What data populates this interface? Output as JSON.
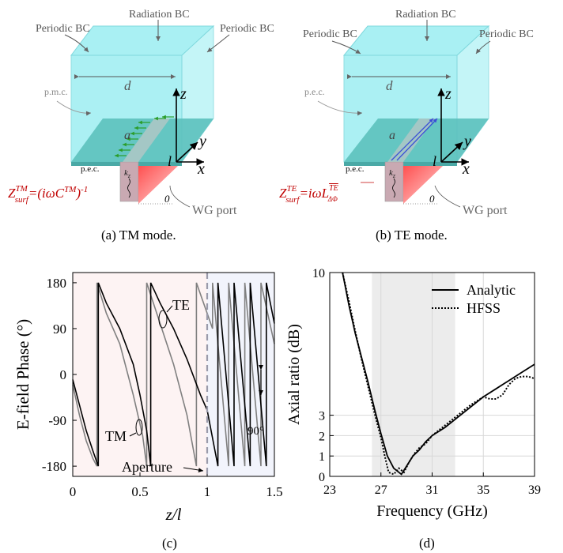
{
  "figure": {
    "a": {
      "caption": "(a) TM mode.",
      "labels": {
        "radiation_bc": "Radiation BC",
        "periodic_left": "Periodic BC",
        "periodic_right": "Periodic BC",
        "pmc": "p.m.c.",
        "pec": "p.e.c.",
        "d": "d",
        "a": "a",
        "z": "z",
        "y": "y",
        "x": "x",
        "l": "l",
        "kz": "kz",
        "zero": "0",
        "wg_port": "WG port",
        "formula": "Z_surf^TM = (iωC^TM)^-1"
      }
    },
    "b": {
      "caption": "(b) TE mode.",
      "labels": {
        "radiation_bc": "Radiation BC",
        "periodic_left": "Periodic BC",
        "periodic_right": "Periodic BC",
        "pec_top": "p.e.c.",
        "pec": "p.e.c.",
        "d": "d",
        "a": "a",
        "z": "z",
        "y": "y",
        "x": "x",
        "l": "l",
        "kz": "kz",
        "zero": "0",
        "wg_port": "WG port",
        "formula": "Z_surf^TE = iωL_ΔΦ^TE"
      }
    },
    "c": {
      "caption": "(c)"
    },
    "d": {
      "caption": "(d)"
    }
  },
  "chart_data": [
    {
      "id": "c",
      "type": "line",
      "xlabel": "z/l",
      "ylabel": "E-field Phase (°)",
      "xlim": [
        0,
        1.5
      ],
      "ylim": [
        -200,
        200
      ],
      "xticks": [
        0,
        0.5,
        1,
        1.5
      ],
      "xtick_labels": [
        "0",
        "0.5",
        "1",
        "1.5"
      ],
      "yticks": [
        180,
        90,
        0,
        -90,
        -180
      ],
      "ytick_labels": [
        "180",
        "90",
        "0",
        "-90",
        "-180"
      ],
      "aperture_x": 1,
      "regions": [
        {
          "x": [
            0,
            1
          ],
          "color": "#fdf3f3"
        },
        {
          "x": [
            1,
            1.5
          ],
          "color": "#f2f4fc"
        }
      ],
      "annotations": {
        "te": "TE",
        "tm": "TM",
        "aperture": "Aperture",
        "ninety": "90°"
      },
      "series": [
        {
          "name": "TE",
          "color": "#000000",
          "x": [
            0,
            0.05,
            0.1,
            0.15,
            0.19,
            0.19,
            0.25,
            0.35,
            0.45,
            0.5,
            0.55,
            0.58,
            0.58,
            0.65,
            0.75,
            0.85,
            0.95,
            1.0,
            1.08,
            1.08,
            1.2,
            1.2,
            1.32,
            1.32,
            1.44,
            1.44,
            1.5
          ],
          "y": [
            -10,
            -60,
            -110,
            -150,
            -180,
            180,
            140,
            90,
            20,
            -40,
            -110,
            -180,
            180,
            140,
            90,
            30,
            -40,
            -70,
            -180,
            180,
            -180,
            180,
            -180,
            180,
            -180,
            180,
            100
          ]
        },
        {
          "name": "TM",
          "color": "#808080",
          "x": [
            0,
            0.05,
            0.1,
            0.15,
            0.18,
            0.18,
            0.25,
            0.35,
            0.45,
            0.52,
            0.55,
            0.55,
            0.65,
            0.75,
            0.85,
            0.92,
            0.92,
            1.0,
            1.04,
            1.04,
            1.16,
            1.16,
            1.28,
            1.28,
            1.4,
            1.4,
            1.5
          ],
          "y": [
            -20,
            -80,
            -130,
            -165,
            -180,
            180,
            120,
            60,
            -40,
            -120,
            -180,
            180,
            100,
            20,
            -80,
            -180,
            180,
            120,
            90,
            180,
            -180,
            180,
            -180,
            180,
            -180,
            180,
            60
          ]
        }
      ]
    },
    {
      "id": "d",
      "type": "line",
      "xlabel": "Frequency (GHz)",
      "ylabel": "Axial ratio (dB)",
      "xlim": [
        23,
        39
      ],
      "ylim": [
        0,
        10
      ],
      "xticks": [
        23,
        27,
        31,
        35,
        39
      ],
      "xtick_labels": [
        "23",
        "27",
        "31",
        "35",
        "39"
      ],
      "yticks": [
        0,
        1,
        2,
        3,
        10
      ],
      "ytick_labels": [
        "0",
        "1",
        "2",
        "3",
        "10"
      ],
      "shaded_band": [
        26.3,
        32.8
      ],
      "grid": true,
      "legend": "top-right",
      "series": [
        {
          "name": "Analytic",
          "style": "solid",
          "x": [
            24,
            24.5,
            25,
            25.5,
            26,
            26.5,
            27,
            27.5,
            28,
            28.6,
            29,
            29.5,
            30,
            30.5,
            31,
            32,
            33,
            34,
            35,
            36,
            37,
            38,
            39
          ],
          "y": [
            10,
            8.4,
            7.0,
            5.8,
            4.6,
            3.3,
            2.1,
            1.0,
            0.4,
            0.1,
            0.5,
            1.0,
            1.3,
            1.7,
            2.0,
            2.4,
            2.9,
            3.4,
            3.9,
            4.3,
            4.7,
            5.1,
            5.5
          ]
        },
        {
          "name": "HFSS",
          "style": "dotted",
          "x": [
            24,
            24.5,
            25,
            25.5,
            26,
            26.5,
            27,
            27.3,
            27.6,
            28,
            28.4,
            28.8,
            29.2,
            29.6,
            30,
            30.5,
            31,
            32,
            33,
            34,
            35,
            35.5,
            36,
            36.5,
            37,
            37.5,
            38,
            38.5,
            39
          ],
          "y": [
            10,
            8.6,
            7.1,
            5.7,
            4.4,
            3.1,
            1.9,
            1.0,
            0.2,
            0.1,
            0.4,
            0.2,
            0.7,
            1.1,
            1.4,
            1.6,
            2.0,
            2.5,
            3.0,
            3.5,
            3.9,
            3.8,
            3.8,
            4.0,
            4.5,
            4.8,
            4.9,
            4.9,
            4.8
          ]
        }
      ]
    }
  ]
}
